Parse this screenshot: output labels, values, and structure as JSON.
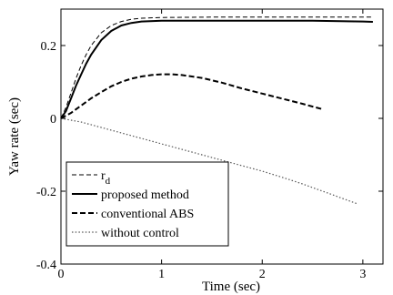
{
  "chart_data": {
    "type": "line",
    "title": "",
    "xlabel": "Time (sec)",
    "ylabel": "Yaw rate (sec)",
    "xlim": [
      0,
      3.2
    ],
    "ylim": [
      -0.4,
      0.3
    ],
    "xticks": [
      0,
      1,
      2,
      3
    ],
    "yticks": [
      -0.4,
      -0.2,
      0,
      0.2
    ],
    "xtick_labels": [
      "0",
      "1",
      "2",
      "3"
    ],
    "ytick_labels": [
      "-0.4",
      "-0.2",
      "0",
      "0.2"
    ],
    "grid": false,
    "legend_position": "lower-left",
    "series": [
      {
        "name": "r",
        "name_subscript": "d",
        "style": "dashed-thin",
        "color": "#000000",
        "points": [
          [
            0,
            0
          ],
          [
            0.05,
            0.03
          ],
          [
            0.1,
            0.07
          ],
          [
            0.15,
            0.11
          ],
          [
            0.2,
            0.145
          ],
          [
            0.25,
            0.175
          ],
          [
            0.3,
            0.2
          ],
          [
            0.4,
            0.235
          ],
          [
            0.5,
            0.255
          ],
          [
            0.6,
            0.266
          ],
          [
            0.7,
            0.272
          ],
          [
            0.8,
            0.275
          ],
          [
            1.0,
            0.277
          ],
          [
            1.5,
            0.278
          ],
          [
            2.0,
            0.278
          ],
          [
            2.5,
            0.278
          ],
          [
            3.1,
            0.278
          ]
        ]
      },
      {
        "name": "proposed method",
        "style": "solid",
        "color": "#000000",
        "points": [
          [
            0,
            0
          ],
          [
            0.05,
            0.02
          ],
          [
            0.1,
            0.055
          ],
          [
            0.15,
            0.09
          ],
          [
            0.2,
            0.12
          ],
          [
            0.25,
            0.15
          ],
          [
            0.3,
            0.175
          ],
          [
            0.4,
            0.215
          ],
          [
            0.5,
            0.24
          ],
          [
            0.6,
            0.255
          ],
          [
            0.7,
            0.262
          ],
          [
            0.8,
            0.266
          ],
          [
            1.0,
            0.268
          ],
          [
            1.5,
            0.268
          ],
          [
            2.0,
            0.268
          ],
          [
            2.5,
            0.268
          ],
          [
            3.0,
            0.266
          ],
          [
            3.1,
            0.265
          ]
        ]
      },
      {
        "name": "conventional ABS",
        "style": "dashed",
        "color": "#000000",
        "points": [
          [
            0,
            0
          ],
          [
            0.1,
            0.015
          ],
          [
            0.2,
            0.035
          ],
          [
            0.3,
            0.055
          ],
          [
            0.4,
            0.072
          ],
          [
            0.5,
            0.088
          ],
          [
            0.6,
            0.1
          ],
          [
            0.7,
            0.109
          ],
          [
            0.8,
            0.115
          ],
          [
            0.9,
            0.119
          ],
          [
            1.0,
            0.121
          ],
          [
            1.1,
            0.121
          ],
          [
            1.2,
            0.119
          ],
          [
            1.4,
            0.111
          ],
          [
            1.6,
            0.098
          ],
          [
            1.8,
            0.082
          ],
          [
            2.0,
            0.068
          ],
          [
            2.2,
            0.054
          ],
          [
            2.4,
            0.04
          ],
          [
            2.6,
            0.025
          ]
        ]
      },
      {
        "name": "without control",
        "style": "dotted",
        "color": "#555555",
        "points": [
          [
            0,
            0
          ],
          [
            0.2,
            -0.01
          ],
          [
            0.4,
            -0.025
          ],
          [
            0.6,
            -0.04
          ],
          [
            0.8,
            -0.055
          ],
          [
            1.0,
            -0.07
          ],
          [
            1.2,
            -0.085
          ],
          [
            1.4,
            -0.1
          ],
          [
            1.6,
            -0.115
          ],
          [
            1.8,
            -0.13
          ],
          [
            2.0,
            -0.145
          ],
          [
            2.2,
            -0.162
          ],
          [
            2.4,
            -0.18
          ],
          [
            2.6,
            -0.2
          ],
          [
            2.8,
            -0.22
          ],
          [
            2.95,
            -0.235
          ]
        ]
      }
    ]
  }
}
